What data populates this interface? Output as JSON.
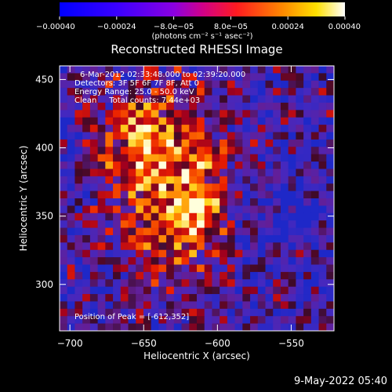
{
  "chart_data": {
    "type": "heatmap",
    "title": "Reconstructed RHESSI Image",
    "xlabel": "Heliocentric X (arcsec)",
    "ylabel": "Heliocentric Y (arcsec)",
    "xlim": [
      -707,
      -521
    ],
    "ylim": [
      266,
      460
    ],
    "x_ticks": [
      -700,
      -650,
      -600,
      -550
    ],
    "x_tick_labels": [
      "−700",
      "−650",
      "−600",
      "−550"
    ],
    "y_ticks": [
      300,
      350,
      400,
      450
    ],
    "y_tick_labels": [
      "300",
      "350",
      "400",
      "450"
    ],
    "colorbar": {
      "range": [
        -0.0004,
        0.0004
      ],
      "ticks": [
        -0.0004,
        -0.00024,
        -8e-05,
        8e-05,
        0.00024,
        0.0004
      ],
      "tick_labels": [
        "−0.00040",
        "−0.00024",
        "−8.0e−05",
        "8.0e−05",
        "0.00024",
        "0.00040"
      ],
      "units_label": "(photons cm⁻² s⁻¹ asec⁻²)",
      "colormap": [
        "#0000ff",
        "#6a00ff",
        "#ff0080",
        "#ff3000",
        "#ffa000",
        "#ffff00",
        "#ffffff"
      ]
    },
    "annotations": [
      "6-Mar-2012 02:33:48.000 to 02:39:20.000",
      "Detectors: 3F 5F 6F 7F 8F, Att 0",
      "Energy Range: 25.0 - 50.0 keV",
      "Clean     Total counts: 7.44e+03"
    ],
    "peak_label": "Position of Peak = [-612,352]",
    "peak": [
      -612,
      352
    ]
  },
  "footer": {
    "date": "9-May-2022 05:40"
  }
}
